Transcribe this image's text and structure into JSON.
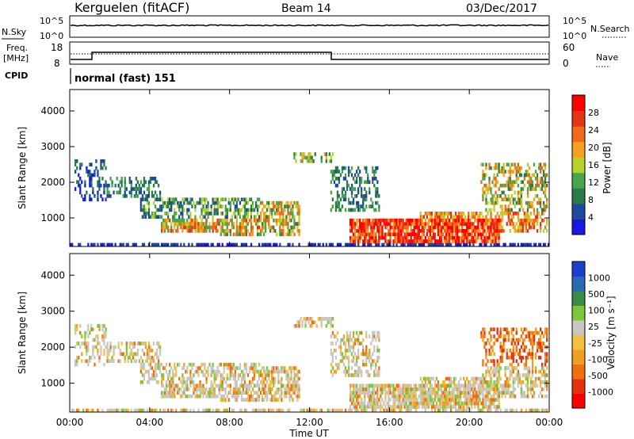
{
  "header": {
    "station": "Kerguelen (fitACF)",
    "beam": "Beam 14",
    "date": "03/Dec/2017"
  },
  "top_panels": {
    "nsky_label": "N.Sky",
    "nsearch_label": "N.Search",
    "nsky_ticks": [
      "10^5",
      "10^0"
    ],
    "nsearch_ticks": [
      "10^5",
      "10^0"
    ],
    "freq_label_1": "Freq.",
    "freq_label_2": "[MHz]",
    "freq_ticks": [
      "18",
      "8"
    ],
    "nave_label": "Nave",
    "nave_ticks": [
      "60",
      "0"
    ],
    "cpid_label": "CPID",
    "cpid_text": "normal (fast) 151"
  },
  "colors": {
    "power_scale": [
      "#1818e0",
      "#1d49a0",
      "#2a7a4a",
      "#4aa44a",
      "#b8d22a",
      "#f5a020",
      "#f06a18",
      "#e63218",
      "#ff0000"
    ],
    "velocity_scale": [
      "#1a3fcf",
      "#2a6ab0",
      "#3a8a4a",
      "#7ac83a",
      "#c8c8c0",
      "#f0c040",
      "#f0a020",
      "#f07010",
      "#e83010",
      "#ff0000"
    ]
  },
  "chart_data": [
    {
      "type": "heatmap",
      "name": "power",
      "ylabel": "Slant Range [km]",
      "yticks": [
        "1000",
        "2000",
        "3000",
        "4000"
      ],
      "ylim": [
        200,
        4600
      ],
      "colorbar_label": "Power [dB]",
      "colorbar_ticks": [
        "4",
        "8",
        "12",
        "16",
        "20",
        "24",
        "28"
      ],
      "colorbar_range": [
        0,
        30
      ],
      "xticks": [
        "00:00",
        "04:00",
        "08:00",
        "12:00",
        "16:00",
        "20:00",
        "00:00"
      ],
      "xlim_hours": [
        0,
        24
      ]
    },
    {
      "type": "heatmap",
      "name": "velocity",
      "ylabel": "Slant Range [km]",
      "yticks": [
        "1000",
        "2000",
        "3000",
        "4000"
      ],
      "ylim": [
        200,
        4600
      ],
      "colorbar_label": "Velocity [m s⁻¹]",
      "colorbar_ticks": [
        "1000",
        "500",
        "100",
        "25",
        "-25",
        "-100",
        "-500",
        "-1000"
      ],
      "xticks": [
        "00:00",
        "04:00",
        "08:00",
        "12:00",
        "16:00",
        "20:00",
        "00:00"
      ],
      "xlabel": "Time UT",
      "xlim_hours": [
        0,
        24
      ]
    }
  ]
}
